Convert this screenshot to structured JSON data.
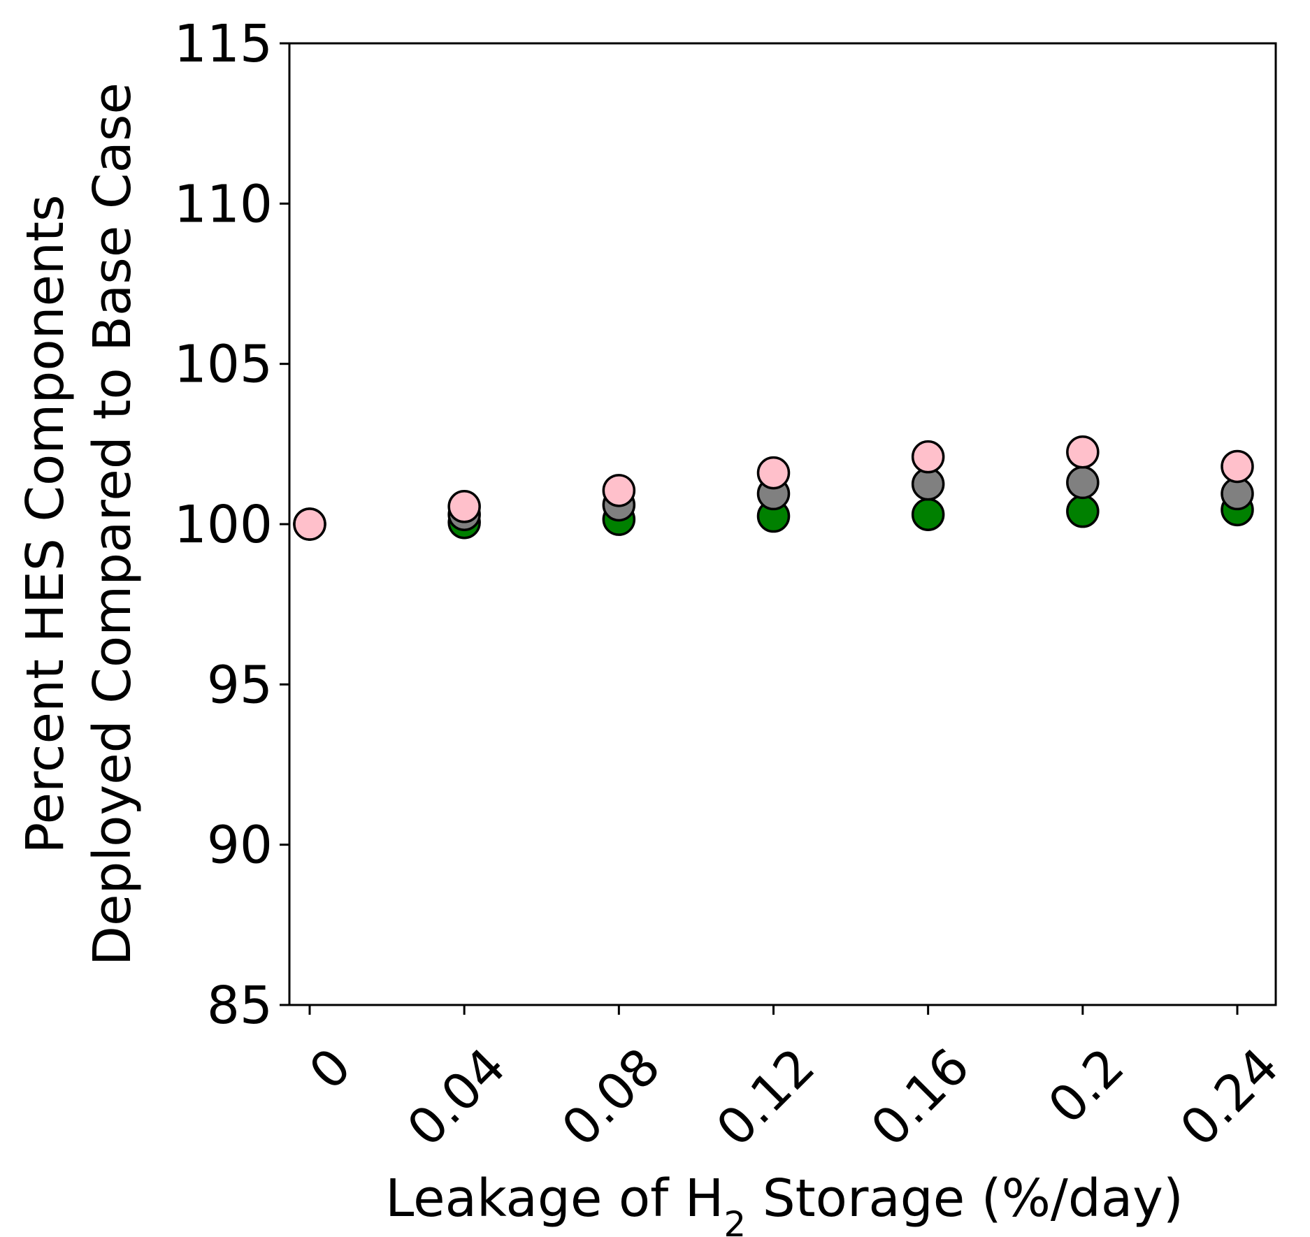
{
  "chart_data": {
    "type": "scatter",
    "xlabel_prefix": "Leakage of H",
    "xlabel_sub": "2",
    "xlabel_suffix": " Storage (%/day)",
    "ylabel_line1": "Percent HES Components",
    "ylabel_line2": "Deployed Compared to Base Case",
    "x_categories": [
      "0",
      "0.04",
      "0.08",
      "0.12",
      "0.16",
      "0.2",
      "0.24"
    ],
    "ylim": [
      85,
      115
    ],
    "yticks": [
      85,
      90,
      95,
      100,
      105,
      110,
      115
    ],
    "grid": false,
    "legend": "none",
    "series": [
      {
        "color": "#008000",
        "values": [
          100.0,
          100.05,
          100.15,
          100.25,
          100.3,
          100.4,
          100.45
        ]
      },
      {
        "color": "#808080",
        "values": [
          100.0,
          100.3,
          100.6,
          100.95,
          101.25,
          101.3,
          100.95
        ]
      },
      {
        "color": "#ffc0cb",
        "values": [
          100.0,
          100.55,
          101.05,
          101.6,
          102.1,
          102.25,
          101.8
        ]
      }
    ]
  }
}
